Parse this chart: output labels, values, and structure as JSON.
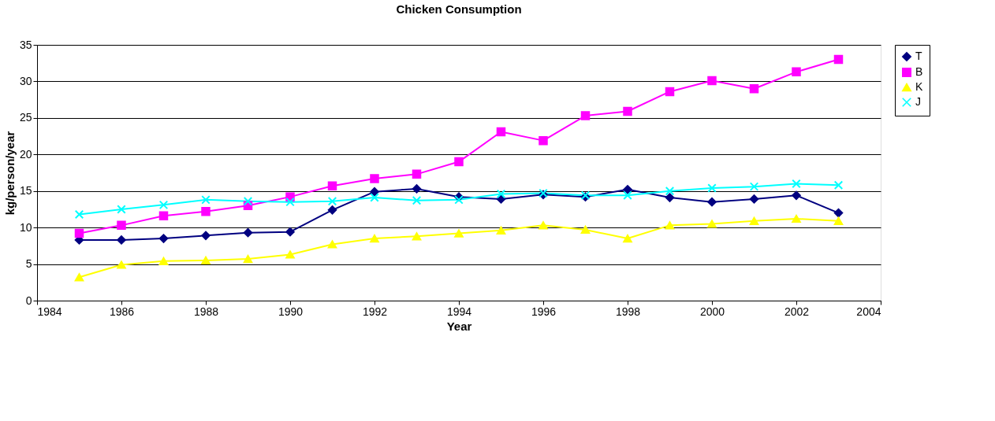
{
  "chart_data": {
    "type": "line",
    "title": "Chicken Consumption",
    "xlabel": "Year",
    "ylabel": "kg/person/year",
    "x": [
      1985,
      1986,
      1987,
      1988,
      1989,
      1990,
      1991,
      1992,
      1993,
      1994,
      1995,
      1996,
      1997,
      1998,
      1999,
      2000,
      2001,
      2002,
      2003
    ],
    "series": [
      {
        "name": "T",
        "color": "#000080",
        "marker": "diamond",
        "values": [
          8.3,
          8.3,
          8.5,
          8.9,
          9.3,
          9.4,
          12.4,
          14.9,
          15.3,
          14.2,
          13.9,
          14.5,
          14.2,
          15.2,
          14.1,
          13.5,
          13.9,
          14.4,
          12.0
        ]
      },
      {
        "name": "B",
        "color": "#ff00ff",
        "marker": "square",
        "values": [
          9.2,
          10.3,
          11.6,
          12.2,
          13.0,
          14.2,
          15.7,
          16.7,
          17.3,
          19.0,
          23.1,
          21.9,
          25.3,
          25.9,
          28.6,
          30.1,
          29.0,
          31.3,
          33.0
        ]
      },
      {
        "name": "K",
        "color": "#ffff00",
        "marker": "triangle",
        "values": [
          3.2,
          4.9,
          5.4,
          5.5,
          5.7,
          6.3,
          7.7,
          8.5,
          8.8,
          9.2,
          9.6,
          10.3,
          9.7,
          8.5,
          10.3,
          10.5,
          10.9,
          11.2,
          10.9
        ]
      },
      {
        "name": "J",
        "color": "#00ffff",
        "marker": "cross",
        "values": [
          11.8,
          12.5,
          13.1,
          13.8,
          13.6,
          13.5,
          13.6,
          14.1,
          13.7,
          13.8,
          14.6,
          14.7,
          14.4,
          14.4,
          15.0,
          15.4,
          15.6,
          16.0,
          15.8
        ]
      }
    ],
    "xlim": [
      1984,
      2004
    ],
    "xticks": [
      1984,
      1986,
      1988,
      1990,
      1992,
      1994,
      1996,
      1998,
      2000,
      2002,
      2004
    ],
    "ylim": [
      0,
      35
    ],
    "yticks": [
      0,
      5,
      10,
      15,
      20,
      25,
      30,
      35
    ],
    "grid": "y",
    "legend": "right",
    "line_style": "solid"
  }
}
